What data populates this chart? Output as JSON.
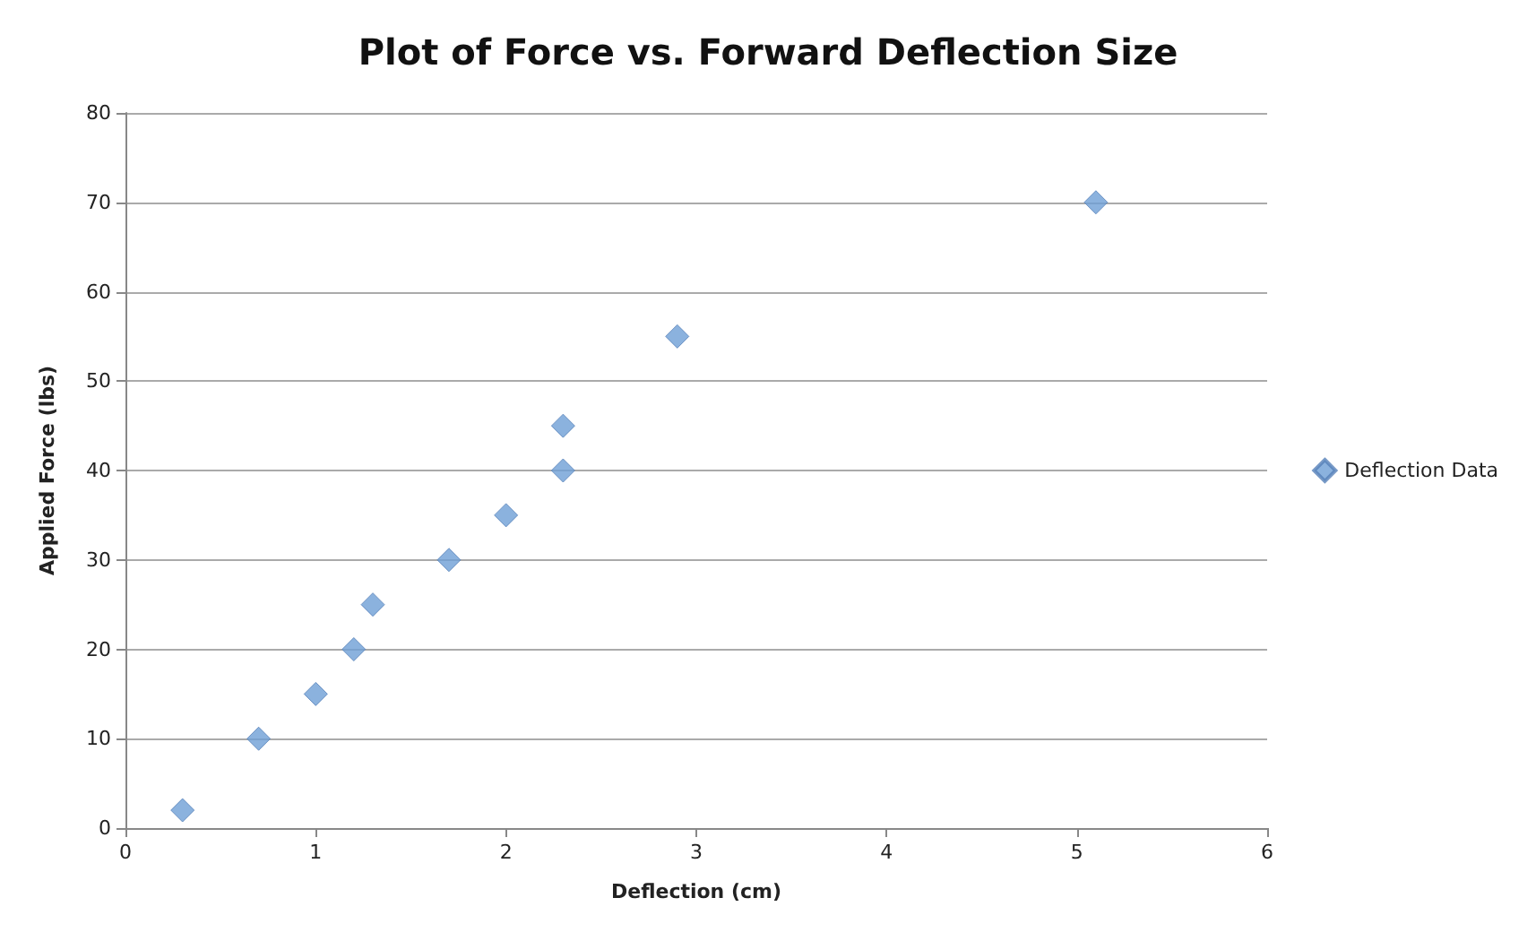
{
  "chart_data": {
    "type": "scatter",
    "title": "Plot of Force vs. Forward Deflection Size",
    "xlabel": "Deflection (cm)",
    "ylabel": "Applied Force (lbs)",
    "series": [
      {
        "name": "Deflection Data",
        "color": "#6e9fd6",
        "x": [
          0.3,
          0.7,
          1,
          1.2,
          1.3,
          1.7,
          2,
          2.3,
          2.3,
          2.9,
          5.1
        ],
        "values": [
          2,
          10,
          15,
          20,
          25,
          30,
          35,
          40,
          45,
          55,
          70
        ]
      }
    ],
    "xlim": [
      0,
      6
    ],
    "xticks": [
      0,
      1,
      2,
      3,
      4,
      5,
      6
    ],
    "ylim": [
      0,
      80
    ],
    "yticks": [
      0,
      10,
      20,
      30,
      40,
      50,
      60,
      70,
      80
    ],
    "grid": "y",
    "legend": "right",
    "marker": "diamond"
  }
}
